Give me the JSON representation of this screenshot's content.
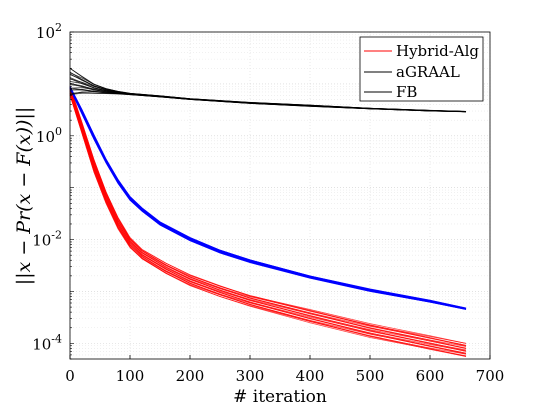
{
  "chart_data": {
    "type": "line",
    "xlabel": "# iteration",
    "ylabel": "||x − Pr(x − F(x))||",
    "xlim": [
      0,
      700
    ],
    "ylim": [
      5e-05,
      100
    ],
    "yscale": "log",
    "grid": true,
    "x_ticks": [
      "0",
      "100",
      "200",
      "300",
      "400",
      "500",
      "600",
      "700"
    ],
    "y_ticks": [
      {
        "base": "10",
        "exp": "2",
        "value": 100
      },
      {
        "base": "10",
        "exp": "0",
        "value": 1
      },
      {
        "base": "10",
        "exp": "-2",
        "value": 0.01
      },
      {
        "base": "10",
        "exp": "-4",
        "value": 0.0001
      }
    ],
    "legend": {
      "position": "top-right"
    },
    "series": [
      {
        "name": "Hybrid-Alg",
        "color": "#ff0000",
        "runs": 20,
        "x": [
          0,
          20,
          40,
          60,
          80,
          100,
          120,
          160,
          200,
          250,
          300,
          400,
          500,
          600,
          660
        ],
        "y_min": [
          6,
          1.1,
          0.2,
          0.05,
          0.016,
          0.007,
          0.0042,
          0.0022,
          0.0013,
          0.0008,
          0.00052,
          0.00025,
          0.00013,
          7.5e-05,
          5.5e-05
        ],
        "y_max": [
          9,
          1.8,
          0.35,
          0.085,
          0.027,
          0.011,
          0.0065,
          0.0035,
          0.0021,
          0.0013,
          0.00085,
          0.00045,
          0.00024,
          0.00014,
          0.0001
        ]
      },
      {
        "name": "aGRAAL",
        "color": "#0000ff",
        "runs": 20,
        "x": [
          0,
          20,
          40,
          60,
          80,
          100,
          120,
          150,
          200,
          250,
          300,
          400,
          500,
          600,
          660
        ],
        "y_min": [
          8,
          2.6,
          0.85,
          0.3,
          0.12,
          0.057,
          0.035,
          0.019,
          0.0095,
          0.0055,
          0.0036,
          0.0018,
          0.001,
          0.00062,
          0.00045
        ],
        "y_max": [
          9,
          3.2,
          1.05,
          0.36,
          0.145,
          0.068,
          0.041,
          0.022,
          0.011,
          0.0063,
          0.0041,
          0.002,
          0.00112,
          0.00068,
          0.00048
        ]
      },
      {
        "name": "FB",
        "color": "#000000",
        "runs": 20,
        "x": [
          0,
          20,
          40,
          60,
          80,
          100,
          150,
          200,
          300,
          400,
          500,
          600,
          660
        ],
        "y_min": [
          6,
          6.6,
          6.6,
          6.5,
          6.4,
          6.2,
          5.6,
          5.0,
          4.2,
          3.7,
          3.3,
          3.0,
          2.9
        ],
        "y_max": [
          20,
          14,
          10,
          8.2,
          7.2,
          6.6,
          5.9,
          5.2,
          4.4,
          3.9,
          3.4,
          3.1,
          2.95
        ]
      }
    ]
  }
}
